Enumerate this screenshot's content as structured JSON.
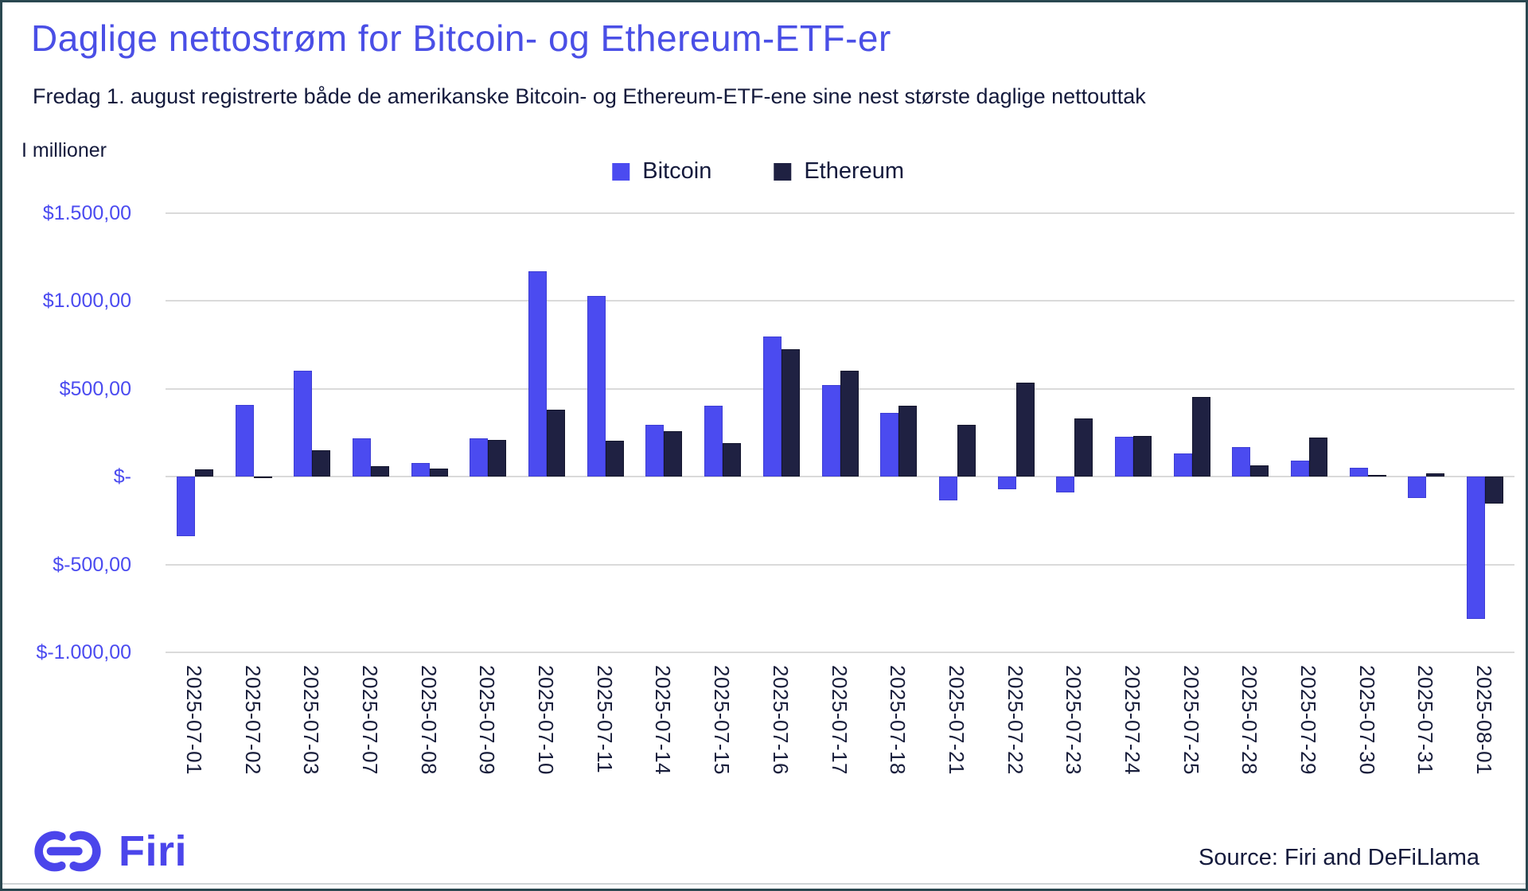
{
  "header": {
    "title": "Daglige nettostrøm for Bitcoin- og Ethereum-ETF-er",
    "subtitle": "Fredag 1. august registrerte både de amerikanske Bitcoin- og Ethereum-ETF-ene sine nest største daglige nettouttak"
  },
  "axis_unit": "I millioner",
  "legend": [
    {
      "label": "Bitcoin",
      "color": "#4B4BF0"
    },
    {
      "label": "Ethereum",
      "color": "#1F2142"
    }
  ],
  "footer": {
    "brand": "Firi",
    "source": "Source: Firi and DeFiLlama"
  },
  "colors": {
    "title": "#4A4FE6",
    "axis_labels": "#4B4BF0",
    "text_dark": "#141A3C",
    "gridline": "#dadada",
    "background": "#ffffff"
  },
  "chart_data": {
    "type": "bar",
    "title": "Daglige nettostrøm for Bitcoin- og Ethereum-ETF-er",
    "xlabel": "",
    "ylabel": "I millioner",
    "units": "USD millions",
    "ylim": [
      -1000,
      1500
    ],
    "grid": true,
    "legend_position": "top",
    "yticks": [
      {
        "value": 1500,
        "label": "$1.500,00"
      },
      {
        "value": 1000,
        "label": "$1.000,00"
      },
      {
        "value": 500,
        "label": "$500,00"
      },
      {
        "value": 0,
        "label": "$-"
      },
      {
        "value": -500,
        "label": "$-500,00"
      },
      {
        "value": -1000,
        "label": "$-1.000,00"
      }
    ],
    "categories": [
      "2025-07-01",
      "2025-07-02",
      "2025-07-03",
      "2025-07-07",
      "2025-07-08",
      "2025-07-09",
      "2025-07-10",
      "2025-07-11",
      "2025-07-14",
      "2025-07-15",
      "2025-07-16",
      "2025-07-17",
      "2025-07-18",
      "2025-07-21",
      "2025-07-22",
      "2025-07-23",
      "2025-07-24",
      "2025-07-25",
      "2025-07-28",
      "2025-07-29",
      "2025-07-30",
      "2025-07-31",
      "2025-08-01"
    ],
    "series": [
      {
        "name": "Bitcoin",
        "color": "#4B4BF0",
        "values": [
          -341,
          408,
          602,
          217,
          80,
          218,
          1170,
          1030,
          297,
          403,
          800,
          523,
          363,
          -135,
          -70,
          -90,
          227,
          131,
          170,
          91,
          52,
          -120,
          -812
        ]
      },
      {
        "name": "Ethereum",
        "color": "#1F2142",
        "values": [
          41,
          -2,
          149,
          62,
          47,
          211,
          383,
          205,
          260,
          193,
          727,
          602,
          403,
          296,
          534,
          332,
          231,
          453,
          65,
          222,
          5,
          18,
          -152
        ]
      }
    ]
  }
}
